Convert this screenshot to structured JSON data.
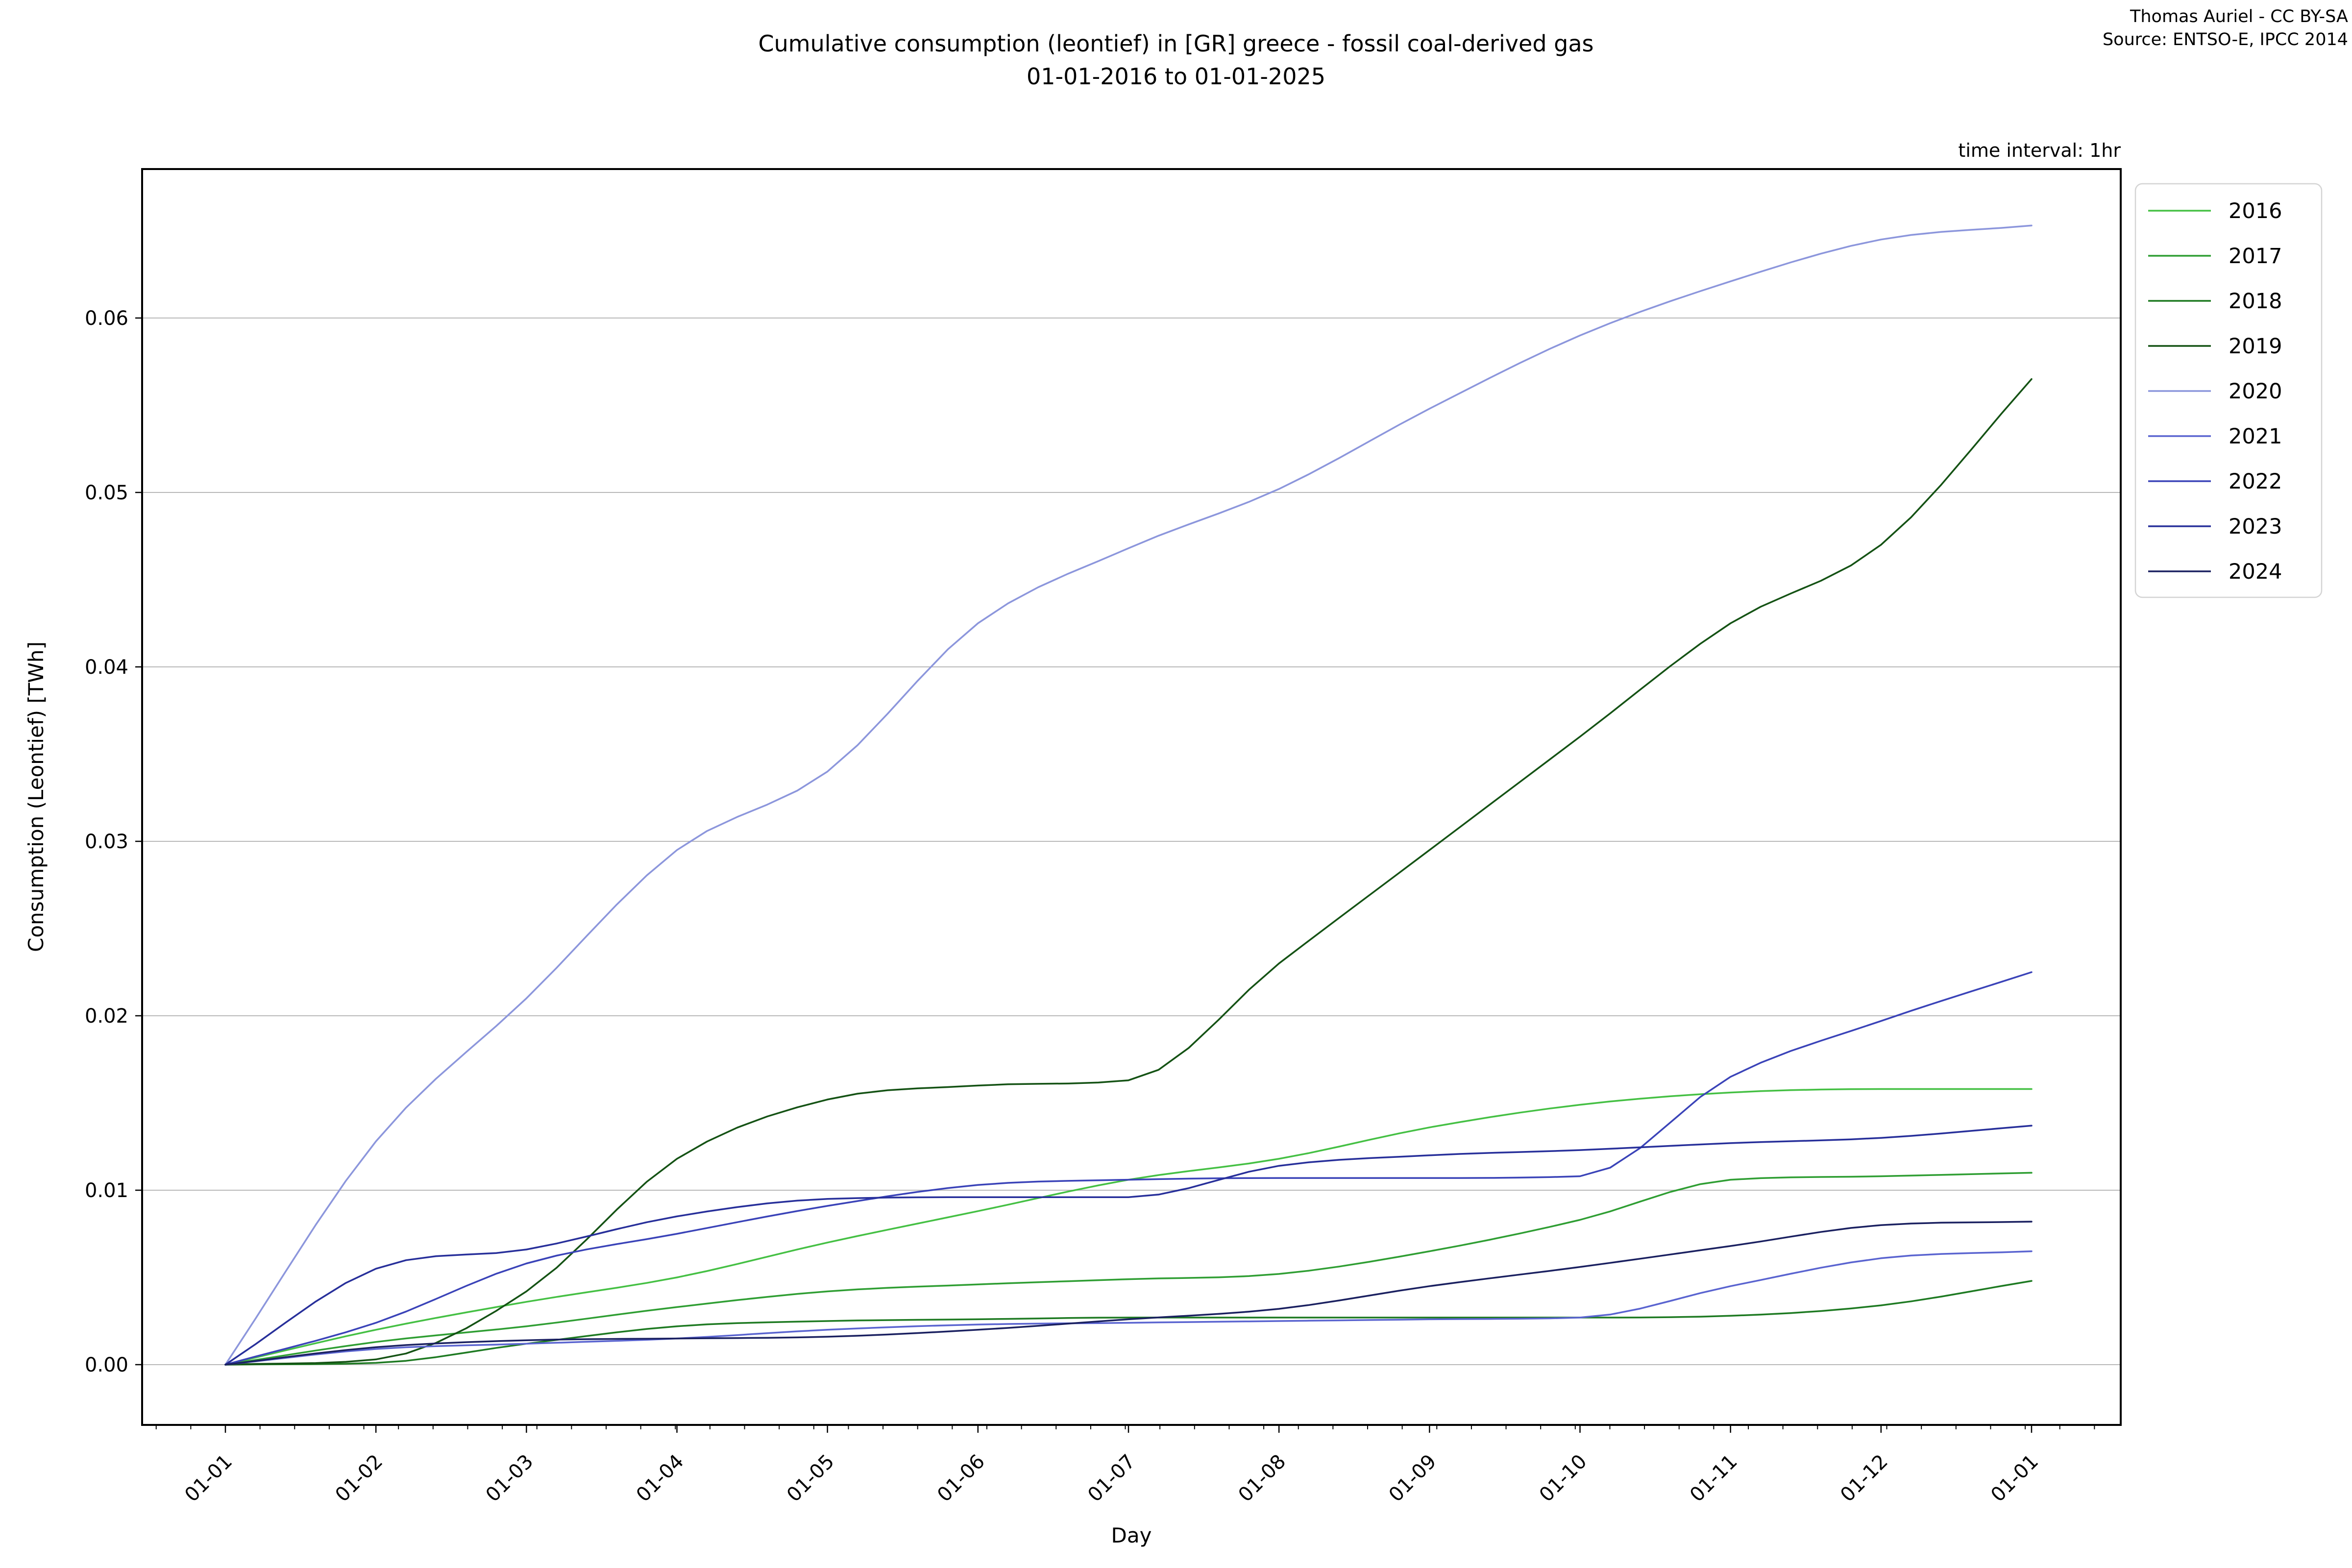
{
  "header": {
    "title_line1": "Cumulative consumption (leontief) in [GR] greece - fossil coal-derived gas",
    "title_line2": "01-01-2016 to 01-01-2025",
    "credit_line1": "Thomas Auriel - CC BY-SA",
    "credit_line2": "Source: ENTSO-E, IPCC 2014",
    "time_interval_note": "time interval: 1hr"
  },
  "chart_data": {
    "type": "line",
    "title": "Cumulative consumption (leontief) in [GR] greece - fossil coal-derived gas 01-01-2016 to 01-01-2025",
    "xlabel": "Day",
    "ylabel": "Consumption (Leontief) [TWh]",
    "grid": true,
    "legend_position": "outside upper right",
    "ylim": [
      -0.0035,
      0.0686
    ],
    "y_ticks": [
      0.0,
      0.01,
      0.02,
      0.03,
      0.04,
      0.05,
      0.06
    ],
    "y_tick_labels": [
      "0.00",
      "0.01",
      "0.02",
      "0.03",
      "0.04",
      "0.05",
      "0.06"
    ],
    "categories": [
      "01-01",
      "01-02",
      "01-03",
      "01-04",
      "01-05",
      "01-06",
      "01-07",
      "01-08",
      "01-09",
      "01-10",
      "01-11",
      "01-12",
      "01-01"
    ],
    "minor_ticks": "weekly",
    "series": [
      {
        "name": "2016",
        "color": "#45c044",
        "values": [
          0.0,
          0.002,
          0.0036,
          0.005,
          0.007,
          0.0088,
          0.0106,
          0.0118,
          0.0136,
          0.0149,
          0.0156,
          0.0158,
          0.0158
        ]
      },
      {
        "name": "2017",
        "color": "#2f9e33",
        "values": [
          0.0,
          0.0013,
          0.0022,
          0.0033,
          0.0042,
          0.0046,
          0.0049,
          0.0052,
          0.0065,
          0.0083,
          0.0106,
          0.0108,
          0.011
        ]
      },
      {
        "name": "2018",
        "color": "#1e7a22",
        "values": [
          0.0,
          0.0001,
          0.0012,
          0.0022,
          0.0025,
          0.0026,
          0.0027,
          0.0027,
          0.0027,
          0.0027,
          0.0028,
          0.0034,
          0.0048
        ]
      },
      {
        "name": "2019",
        "color": "#145214",
        "values": [
          0.0,
          0.0003,
          0.0042,
          0.0118,
          0.0152,
          0.016,
          0.0163,
          0.023,
          0.0295,
          0.036,
          0.0425,
          0.047,
          0.0565
        ]
      },
      {
        "name": "2020",
        "color": "#8c96dc",
        "values": [
          0.0,
          0.0128,
          0.021,
          0.0295,
          0.034,
          0.0425,
          0.0468,
          0.0502,
          0.0548,
          0.059,
          0.0621,
          0.0645,
          0.0653
        ]
      },
      {
        "name": "2021",
        "color": "#5a64d0",
        "values": [
          0.0,
          0.0009,
          0.0012,
          0.0015,
          0.002,
          0.0023,
          0.0024,
          0.0025,
          0.0026,
          0.0027,
          0.0045,
          0.0061,
          0.0065
        ]
      },
      {
        "name": "2022",
        "color": "#3a43b8",
        "values": [
          0.0,
          0.0024,
          0.0058,
          0.0075,
          0.0091,
          0.0103,
          0.0106,
          0.0107,
          0.0107,
          0.0108,
          0.0165,
          0.0197,
          0.0225
        ]
      },
      {
        "name": "2023",
        "color": "#272f9a",
        "values": [
          0.0,
          0.0055,
          0.0066,
          0.0085,
          0.0095,
          0.0096,
          0.0096,
          0.0114,
          0.012,
          0.0123,
          0.0127,
          0.013,
          0.0137
        ]
      },
      {
        "name": "2024",
        "color": "#1a2060",
        "values": [
          0.0,
          0.001,
          0.0014,
          0.0015,
          0.0016,
          0.002,
          0.0026,
          0.0032,
          0.0045,
          0.0056,
          0.0068,
          0.008,
          0.0082
        ]
      }
    ]
  },
  "style": {
    "grid_color": "#b9b9b9",
    "spine_color": "#000000",
    "legend_border_color": "#d4d4d4",
    "line_width": 3.5
  }
}
